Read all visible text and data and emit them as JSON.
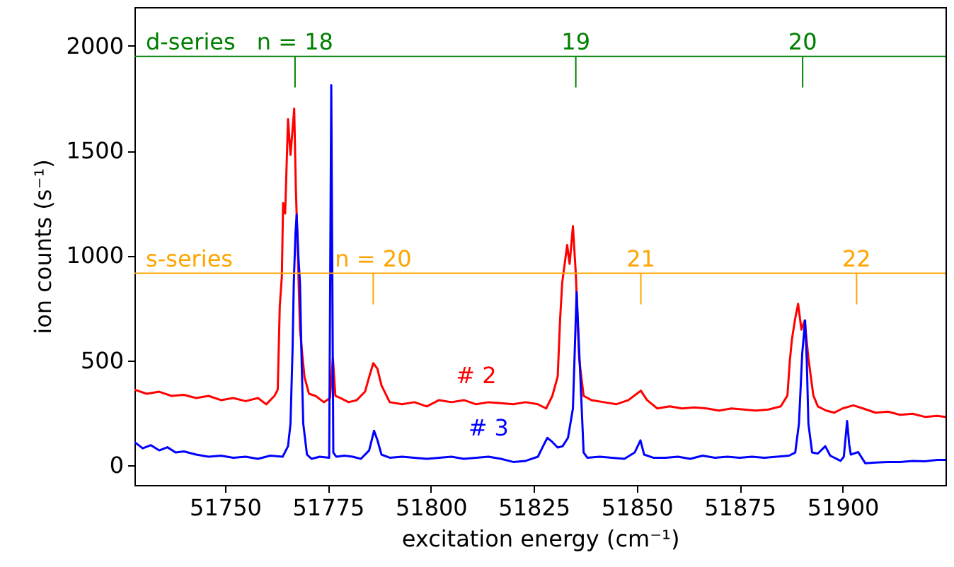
{
  "chart_data": {
    "type": "line",
    "xlabel": "excitation energy (cm⁻¹)",
    "ylabel": "ion counts (s⁻¹)",
    "xlim": [
      51728,
      51925
    ],
    "ylim": [
      -95,
      2185
    ],
    "xticks": [
      51750,
      51775,
      51800,
      51825,
      51850,
      51875,
      51900
    ],
    "yticks": [
      0,
      500,
      1000,
      1500,
      2000
    ],
    "series": [
      {
        "name": "# 2",
        "color": "#ff0000",
        "x": [
          51728,
          51731,
          51734,
          51737,
          51740,
          51743,
          51746,
          51749,
          51752,
          51755,
          51758,
          51760,
          51762,
          51762.8,
          51763.3,
          51763.8,
          51764.1,
          51764.6,
          51765.3,
          51765.9,
          51766.4,
          51766.8,
          51767.2,
          51767.7,
          51768.2,
          51768.8,
          51769.3,
          51770.4,
          51772,
          51774,
          51775.5,
          51776.2,
          51776.8,
          51778,
          51780,
          51782,
          51784,
          51785,
          51786,
          51787,
          51788,
          51790,
          51793,
          51796,
          51799,
          51802,
          51805,
          51808,
          51811,
          51814,
          51817,
          51820,
          51823,
          51826,
          51828,
          51829.5,
          51830.8,
          51831.4,
          51831.9,
          51832.5,
          51833.1,
          51833.7,
          51834.5,
          51835.2,
          51836,
          51837.1,
          51839,
          51842,
          51845,
          51848,
          51850,
          51851,
          51852.5,
          51855,
          51858,
          51861,
          51864,
          51867,
          51870,
          51873,
          51876,
          51879,
          51882,
          51885,
          51886.6,
          51887.2,
          51887.7,
          51888.5,
          51889.2,
          51890,
          51890.8,
          51891.7,
          51892.3,
          51892.9,
          51894,
          51896,
          51898,
          51900,
          51902.6,
          51905,
          51908,
          51911,
          51914,
          51917,
          51920,
          51923,
          51925
        ],
        "values": [
          360,
          340,
          350,
          330,
          335,
          320,
          330,
          310,
          320,
          305,
          320,
          290,
          330,
          360,
          760,
          900,
          1250,
          1200,
          1650,
          1480,
          1600,
          1700,
          1320,
          1000,
          650,
          520,
          420,
          340,
          330,
          300,
          320,
          510,
          330,
          320,
          300,
          310,
          350,
          420,
          486,
          460,
          380,
          300,
          290,
          300,
          280,
          310,
          300,
          310,
          290,
          300,
          295,
          290,
          300,
          290,
          270,
          330,
          422,
          700,
          870,
          960,
          1050,
          960,
          1140,
          913,
          510,
          330,
          310,
          300,
          290,
          310,
          340,
          355,
          310,
          270,
          280,
          270,
          275,
          270,
          260,
          270,
          265,
          260,
          265,
          280,
          332,
          500,
          601,
          700,
          769,
          646,
          690,
          510,
          420,
          332,
          280,
          260,
          250,
          270,
          285,
          270,
          250,
          255,
          240,
          245,
          230,
          235,
          230
        ]
      },
      {
        "name": "# 3",
        "color": "#0000ff",
        "x": [
          51728,
          51730,
          51732,
          51734,
          51736,
          51738,
          51740,
          51743,
          51746,
          51749,
          51752,
          51755,
          51758,
          51761,
          51764,
          51765.3,
          51765.9,
          51766.4,
          51766.7,
          51767.1,
          51767.4,
          51767.8,
          51768.2,
          51768.6,
          51769,
          51769.9,
          51771,
          51773,
          51775.3,
          51775.8,
          51776.3,
          51777,
          51779,
          51781,
          51783,
          51785,
          51786.2,
          51787,
          51788,
          51790,
          51793,
          51796,
          51799,
          51802,
          51805,
          51808,
          51811,
          51814,
          51817,
          51820,
          51823,
          51826,
          51827.5,
          51828.3,
          51829.5,
          51830.8,
          51832,
          51833.3,
          51834.5,
          51835.4,
          51836.3,
          51837.1,
          51838,
          51841,
          51844,
          51847,
          51849.5,
          51850.9,
          51851.8,
          51854,
          51857,
          51860,
          51863,
          51866,
          51869,
          51872,
          51875,
          51878,
          51881,
          51884,
          51887,
          51888.5,
          51889.4,
          51890.2,
          51890.9,
          51891.3,
          51891.7,
          51892.6,
          51894,
          51895.8,
          51897,
          51899.5,
          51900.3,
          51901.1,
          51901.6,
          51902,
          51903.8,
          51905.5,
          51908,
          51911,
          51914,
          51917,
          51920,
          51923,
          51925
        ],
        "values": [
          110,
          80,
          95,
          70,
          85,
          60,
          65,
          50,
          40,
          45,
          35,
          40,
          30,
          45,
          40,
          90,
          197,
          550,
          870,
          1100,
          1195,
          1000,
          870,
          500,
          197,
          50,
          30,
          40,
          35,
          1812,
          60,
          40,
          45,
          40,
          30,
          70,
          164,
          120,
          50,
          35,
          40,
          35,
          30,
          35,
          40,
          30,
          35,
          40,
          30,
          15,
          20,
          40,
          100,
          130,
          110,
          84,
          90,
          130,
          270,
          825,
          422,
          60,
          35,
          40,
          35,
          30,
          60,
          118,
          50,
          35,
          35,
          40,
          30,
          45,
          35,
          40,
          35,
          40,
          35,
          40,
          45,
          60,
          197,
          533,
          690,
          500,
          197,
          60,
          55,
          90,
          45,
          20,
          40,
          210,
          100,
          50,
          62,
          9,
          12,
          15,
          15,
          20,
          18,
          25,
          25
        ]
      }
    ],
    "ref_lines": [
      {
        "axis": "y",
        "value": 1950,
        "label": "d-series",
        "color": "#008000"
      },
      {
        "axis": "y",
        "value": 915,
        "label": "s-series",
        "color": "#ffa500"
      }
    ],
    "annotations": [
      {
        "text": "n = 18",
        "x": 51767,
        "y": 1950
      },
      {
        "text": "19",
        "x": 51835.2,
        "y": 1950
      },
      {
        "text": "20",
        "x": 51890.3,
        "y": 1950
      },
      {
        "text": "n = 20",
        "x": 51786,
        "y": 915
      },
      {
        "text": "21",
        "x": 51851,
        "y": 915
      },
      {
        "text": "22",
        "x": 51903.4,
        "y": 915
      }
    ]
  }
}
